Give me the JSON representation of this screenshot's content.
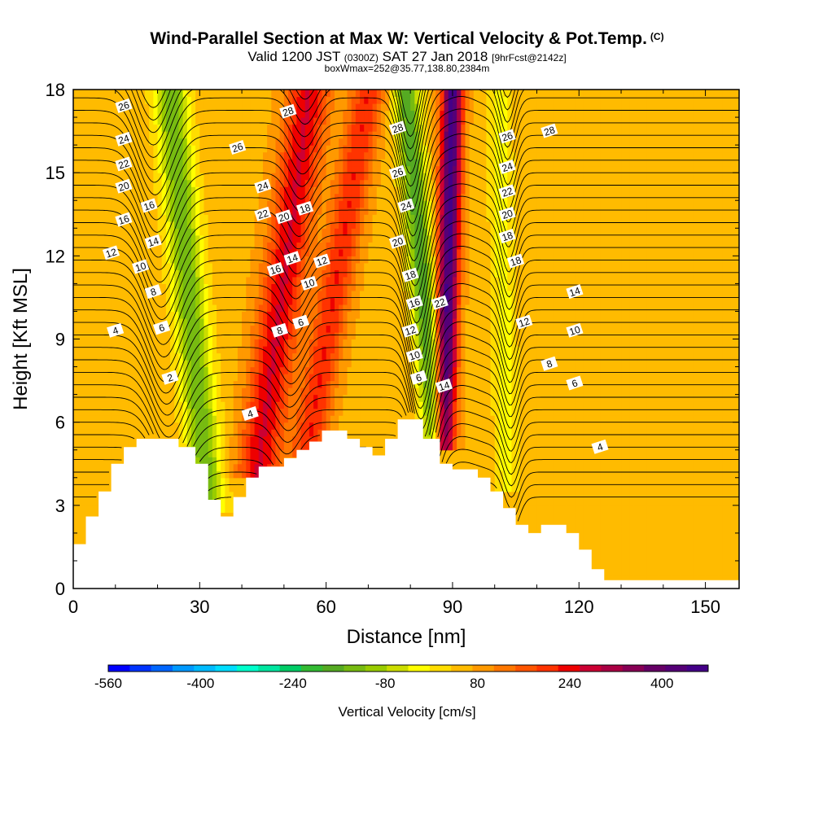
{
  "title": "Wind-Parallel Section at Max W: Vertical Velocity & Pot.Temp.",
  "copyright_mark": "(C)",
  "subtitle": {
    "part1": "Valid 1200 JST",
    "part2": "(0300Z)",
    "part3": "SAT 27 Jan 2018",
    "part4": "[9hrFcst@2142z]"
  },
  "subtitle2": "boxWmax=252@35.77,138.80,2384m",
  "chart_data": {
    "type": "heatmap",
    "title": "Wind-Parallel Section at Max W: Vertical Velocity & Pot.Temp.",
    "xlabel": "Distance [nm]",
    "ylabel": "Height [Kft MSL]",
    "xlim": [
      0,
      158
    ],
    "ylim": [
      0,
      18
    ],
    "x_ticks": [
      "0",
      "30",
      "60",
      "90",
      "120",
      "150"
    ],
    "y_ticks": [
      "0",
      "3",
      "6",
      "9",
      "12",
      "15",
      "18"
    ],
    "colorbar": {
      "label": "Vertical Velocity [cm/s]",
      "tick_labels": [
        "-560",
        "-400",
        "-240",
        "-80",
        "80",
        "240",
        "400"
      ],
      "colors": [
        "#0000ff",
        "#0033ff",
        "#0066ff",
        "#0099ff",
        "#00bbff",
        "#00ddff",
        "#00ffcc",
        "#00e6a0",
        "#00cc66",
        "#33bb33",
        "#55aa22",
        "#77bb11",
        "#99cc00",
        "#ccdd00",
        "#ffff00",
        "#ffdd00",
        "#ffbb00",
        "#ff9900",
        "#ff7700",
        "#ff5500",
        "#ff3300",
        "#ee0000",
        "#cc0033",
        "#aa0044",
        "#880055",
        "#660066",
        "#550077",
        "#440088"
      ],
      "min": -560,
      "max": 480
    },
    "terrain": [
      [
        0,
        1.6
      ],
      [
        3,
        1.6
      ],
      [
        3,
        2.6
      ],
      [
        6,
        2.6
      ],
      [
        6,
        3.5
      ],
      [
        9,
        3.5
      ],
      [
        9,
        4.5
      ],
      [
        12,
        4.5
      ],
      [
        12,
        5.1
      ],
      [
        15,
        5.1
      ],
      [
        15,
        5.4
      ],
      [
        25,
        5.4
      ],
      [
        25,
        5.1
      ],
      [
        29,
        5.1
      ],
      [
        29,
        4.5
      ],
      [
        32,
        4.5
      ],
      [
        32,
        3.2
      ],
      [
        35,
        3.2
      ],
      [
        35,
        2.6
      ],
      [
        38,
        2.6
      ],
      [
        38,
        3.3
      ],
      [
        41,
        3.3
      ],
      [
        41,
        4.0
      ],
      [
        44,
        4.0
      ],
      [
        44,
        4.4
      ],
      [
        50,
        4.4
      ],
      [
        50,
        4.7
      ],
      [
        53,
        4.7
      ],
      [
        53,
        5.0
      ],
      [
        56,
        5.0
      ],
      [
        56,
        5.3
      ],
      [
        59,
        5.3
      ],
      [
        59,
        5.7
      ],
      [
        65,
        5.7
      ],
      [
        65,
        5.4
      ],
      [
        68,
        5.4
      ],
      [
        68,
        5.1
      ],
      [
        71,
        5.1
      ],
      [
        71,
        4.8
      ],
      [
        74,
        4.8
      ],
      [
        74,
        5.4
      ],
      [
        77,
        5.4
      ],
      [
        77,
        6.1
      ],
      [
        83,
        6.1
      ],
      [
        83,
        5.4
      ],
      [
        87,
        5.4
      ],
      [
        87,
        4.5
      ],
      [
        90,
        4.5
      ],
      [
        90,
        4.3
      ],
      [
        96,
        4.3
      ],
      [
        96,
        4.0
      ],
      [
        99,
        4.0
      ],
      [
        99,
        3.5
      ],
      [
        102,
        3.5
      ],
      [
        102,
        2.9
      ],
      [
        105,
        2.9
      ],
      [
        105,
        2.3
      ],
      [
        108,
        2.3
      ],
      [
        108,
        2.0
      ],
      [
        111,
        2.0
      ],
      [
        111,
        2.3
      ],
      [
        117,
        2.3
      ],
      [
        117,
        2.0
      ],
      [
        120,
        2.0
      ],
      [
        120,
        1.4
      ],
      [
        123,
        1.4
      ],
      [
        123,
        0.7
      ],
      [
        126,
        0.7
      ],
      [
        126,
        0.3
      ],
      [
        158,
        0.3
      ]
    ],
    "w_field": {
      "background_cm_s": 60,
      "features": [
        {
          "x_base": 32,
          "x_top": 23,
          "width_nm": 4,
          "w_cm_s": -200,
          "y_from": 3.2,
          "y_to": 18
        },
        {
          "x_base": 44,
          "x_top": 56,
          "width_nm": 5,
          "w_cm_s": 200,
          "y_from": 4.4,
          "y_to": 18
        },
        {
          "x_base": 56,
          "x_top": 70,
          "width_nm": 4,
          "w_cm_s": 160,
          "y_from": 5.3,
          "y_to": 18
        },
        {
          "x_base": 86,
          "x_top": 79,
          "width_nm": 3,
          "w_cm_s": -240,
          "y_from": 5.4,
          "y_to": 18
        },
        {
          "x_base": 88,
          "x_top": 90,
          "width_nm": 2.5,
          "w_cm_s": 400,
          "y_from": 5.4,
          "y_to": 18
        },
        {
          "x_base": 103,
          "x_top": 101,
          "width_nm": 3,
          "w_cm_s": -80,
          "y_from": 4,
          "y_to": 18
        }
      ]
    },
    "theta_contour_labels": [
      {
        "label": "26",
        "x": 12,
        "y": 17.4
      },
      {
        "label": "24",
        "x": 12,
        "y": 16.2
      },
      {
        "label": "22",
        "x": 12,
        "y": 15.3
      },
      {
        "label": "20",
        "x": 12,
        "y": 14.5
      },
      {
        "label": "16",
        "x": 12,
        "y": 13.3
      },
      {
        "label": "12",
        "x": 9,
        "y": 12.1
      },
      {
        "label": "4",
        "x": 10,
        "y": 9.3
      },
      {
        "label": "16",
        "x": 18,
        "y": 13.8
      },
      {
        "label": "14",
        "x": 19,
        "y": 12.5
      },
      {
        "label": "10",
        "x": 16,
        "y": 11.6
      },
      {
        "label": "8",
        "x": 19,
        "y": 10.7
      },
      {
        "label": "6",
        "x": 21,
        "y": 9.4
      },
      {
        "label": "2",
        "x": 23,
        "y": 7.6
      },
      {
        "label": "28",
        "x": 51,
        "y": 17.2
      },
      {
        "label": "26",
        "x": 39,
        "y": 15.9
      },
      {
        "label": "24",
        "x": 45,
        "y": 14.5
      },
      {
        "label": "22",
        "x": 45,
        "y": 13.5
      },
      {
        "label": "20",
        "x": 50,
        "y": 13.4
      },
      {
        "label": "18",
        "x": 55,
        "y": 13.7
      },
      {
        "label": "16",
        "x": 48,
        "y": 11.5
      },
      {
        "label": "14",
        "x": 52,
        "y": 11.9
      },
      {
        "label": "12",
        "x": 59,
        "y": 11.8
      },
      {
        "label": "10",
        "x": 56,
        "y": 11.0
      },
      {
        "label": "8",
        "x": 49,
        "y": 9.3
      },
      {
        "label": "6",
        "x": 54,
        "y": 9.6
      },
      {
        "label": "4",
        "x": 42,
        "y": 6.3
      },
      {
        "label": "28",
        "x": 77,
        "y": 16.6
      },
      {
        "label": "26",
        "x": 77,
        "y": 15.0
      },
      {
        "label": "24",
        "x": 79,
        "y": 13.8
      },
      {
        "label": "20",
        "x": 77,
        "y": 12.5
      },
      {
        "label": "18",
        "x": 80,
        "y": 11.3
      },
      {
        "label": "16",
        "x": 81,
        "y": 10.3
      },
      {
        "label": "12",
        "x": 80,
        "y": 9.3
      },
      {
        "label": "10",
        "x": 81,
        "y": 8.4
      },
      {
        "label": "6",
        "x": 82,
        "y": 7.6
      },
      {
        "label": "22",
        "x": 87,
        "y": 10.3
      },
      {
        "label": "14",
        "x": 88,
        "y": 7.3
      },
      {
        "label": "26",
        "x": 103,
        "y": 16.3
      },
      {
        "label": "28",
        "x": 113,
        "y": 16.5
      },
      {
        "label": "24",
        "x": 103,
        "y": 15.2
      },
      {
        "label": "22",
        "x": 103,
        "y": 14.3
      },
      {
        "label": "20",
        "x": 103,
        "y": 13.5
      },
      {
        "label": "18",
        "x": 103,
        "y": 12.7
      },
      {
        "label": "18",
        "x": 105,
        "y": 11.8
      },
      {
        "label": "14",
        "x": 119,
        "y": 10.7
      },
      {
        "label": "12",
        "x": 107,
        "y": 9.6
      },
      {
        "label": "10",
        "x": 119,
        "y": 9.3
      },
      {
        "label": "8",
        "x": 113,
        "y": 8.1
      },
      {
        "label": "6",
        "x": 119,
        "y": 7.4
      },
      {
        "label": "4",
        "x": 125,
        "y": 5.1
      }
    ]
  }
}
